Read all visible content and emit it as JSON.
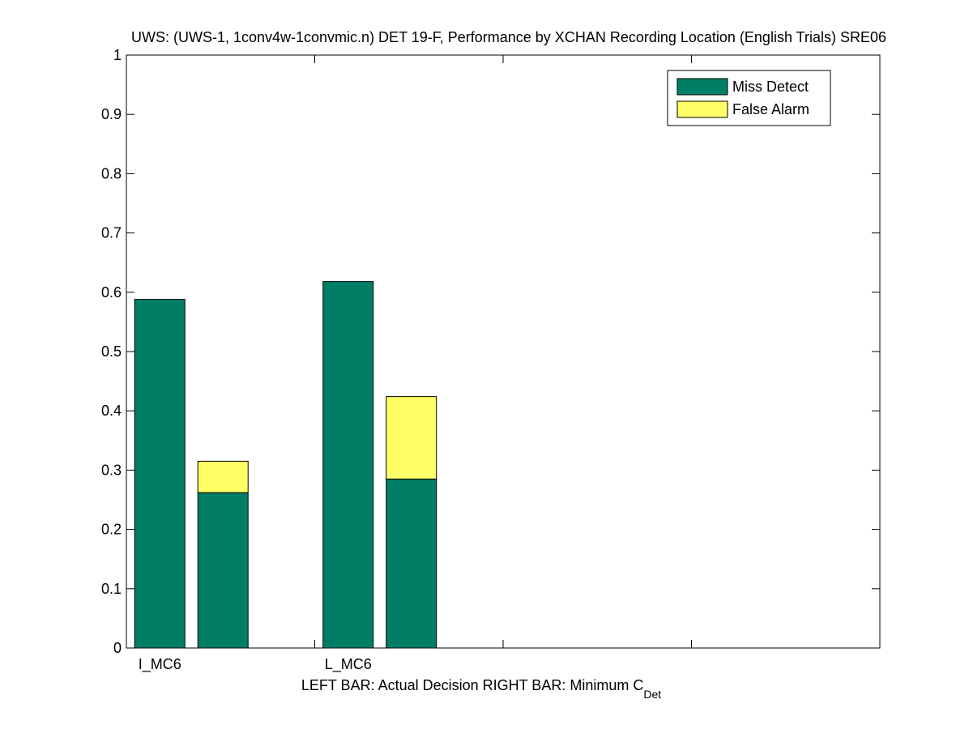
{
  "chart_data": {
    "type": "bar",
    "stacked": true,
    "title": "UWS: (UWS-1, 1conv4w-1convmic.n) DET 19-F,  Performance by XCHAN Recording Location (English Trials) SRE06",
    "xlabel_main": "LEFT BAR: Actual Decision     RIGHT BAR: Minimum C",
    "xlabel_sub": "Det",
    "ylim": [
      0,
      1
    ],
    "yticks": [
      "0",
      "0.1",
      "0.2",
      "0.3",
      "0.4",
      "0.5",
      "0.6",
      "0.7",
      "0.8",
      "0.9",
      "1"
    ],
    "ytick_values": [
      0,
      0.1,
      0.2,
      0.3,
      0.4,
      0.5,
      0.6,
      0.7,
      0.8,
      0.9,
      1
    ],
    "categories": [
      "I_MC6",
      "L_MC6"
    ],
    "num_slots": 4,
    "legend_position": "top-right",
    "series": [
      {
        "name": "Miss Detect",
        "color": "#007f66",
        "actual": [
          0.588,
          0.618
        ],
        "minimum": [
          0.262,
          0.285
        ]
      },
      {
        "name": "False Alarm",
        "color": "#ffff66",
        "actual": [
          0.0,
          0.0
        ],
        "minimum": [
          0.053,
          0.139
        ]
      }
    ]
  }
}
